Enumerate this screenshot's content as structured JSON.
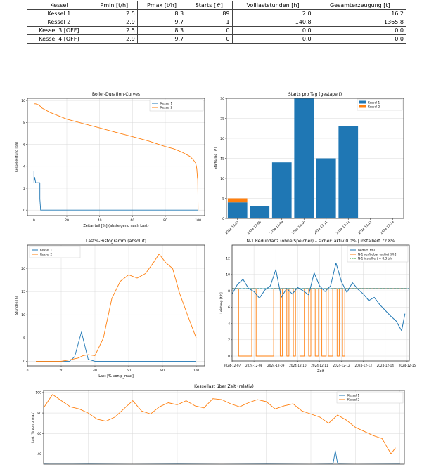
{
  "table": {
    "headers": [
      "Kessel",
      "Pmin [t/h]",
      "Pmax [t/h]",
      "Starts [#]",
      "Volllaststunden [h]",
      "Gesamterzeugung [t]"
    ],
    "rows": [
      [
        "Kessel 1",
        "2.5",
        "8.3",
        "89",
        "2.0",
        "16.2"
      ],
      [
        "Kessel 2",
        "2.9",
        "9.7",
        "1",
        "140.8",
        "1365.8"
      ],
      [
        "Kessel 3 [OFF]",
        "2.5",
        "8.3",
        "0",
        "0.0",
        "0.0"
      ],
      [
        "Kessel 4 [OFF]",
        "2.9",
        "9.7",
        "0",
        "0.0",
        "0.0"
      ]
    ]
  },
  "colors": {
    "blue": "#1f77b4",
    "orange": "#ff7f0e",
    "green": "#2ca02c",
    "grid": "#d9d9d9"
  },
  "chart_data": [
    {
      "id": "duration",
      "type": "line",
      "title": "Boiler-Duration-Curves",
      "xlabel": "Zeitanteil [%] (absteigend nach Last)",
      "ylabel": "Kesselleistung [t/h]",
      "xlim": [
        -4,
        104
      ],
      "ylim": [
        -0.5,
        10.2
      ],
      "xticks": [
        0,
        20,
        40,
        60,
        80,
        100
      ],
      "yticks": [
        0,
        2,
        4,
        6,
        8,
        10
      ],
      "legend": "top-right",
      "series": [
        {
          "name": "Kessel 1",
          "color": "blue",
          "x": [
            0,
            0,
            0.4,
            1,
            1,
            3.6,
            3.6,
            4,
            4,
            100
          ],
          "y": [
            3.6,
            2.5,
            3.0,
            2.5,
            2.5,
            2.5,
            1.0,
            0.1,
            0,
            0
          ]
        },
        {
          "name": "Kessel 2",
          "color": "orange",
          "x": [
            0,
            1,
            3,
            5,
            10,
            20,
            30,
            40,
            50,
            60,
            70,
            80,
            85,
            90,
            95,
            97,
            98.5,
            99.2,
            99.6,
            99.8,
            100
          ],
          "y": [
            9.7,
            9.7,
            9.6,
            9.3,
            8.9,
            8.3,
            7.9,
            7.5,
            7.1,
            6.7,
            6.3,
            5.8,
            5.6,
            5.3,
            4.9,
            4.6,
            4.3,
            3.8,
            3.0,
            2.8,
            0
          ]
        }
      ]
    },
    {
      "id": "starts",
      "type": "bar",
      "title": "Starts pro Tag (gestapelt)",
      "xlabel": "",
      "ylabel": "Starts/Tag [#]",
      "ylim": [
        0,
        30
      ],
      "yticks": [
        0,
        5,
        10,
        15,
        20,
        25,
        30
      ],
      "legend": "top-right",
      "categories": [
        "2024-12-07",
        "2024-12-08",
        "2024-12-09",
        "2024-12-10",
        "2024-12-11",
        "2024-12-12",
        "2024-12-13",
        "2024-12-14"
      ],
      "series": [
        {
          "name": "Kessel 1",
          "color": "blue",
          "values": [
            4,
            3,
            14,
            30,
            15,
            23,
            0,
            0
          ]
        },
        {
          "name": "Kessel 2",
          "color": "orange",
          "values": [
            1,
            0,
            0,
            0,
            0,
            0,
            0,
            0
          ]
        }
      ]
    },
    {
      "id": "histogram",
      "type": "line",
      "title": "Last%-Histogramm (absolut)",
      "xlabel": "Last [% von p_max]",
      "ylabel": "Stunden [h]",
      "xlim": [
        0,
        105
      ],
      "ylim": [
        -1,
        25
      ],
      "xticks": [
        0,
        20,
        40,
        60,
        80,
        100
      ],
      "yticks": [
        0,
        5,
        10,
        15,
        20
      ],
      "legend": "top-left",
      "series": [
        {
          "name": "Kessel 1",
          "color": "blue",
          "x": [
            5,
            10,
            15,
            20,
            25,
            28,
            32,
            36,
            40,
            45,
            50,
            55,
            60,
            65,
            70,
            75,
            80,
            85,
            90,
            95,
            100
          ],
          "y": [
            0,
            0,
            0,
            0,
            0,
            1.0,
            6.3,
            0.4,
            0,
            0,
            0,
            0,
            0,
            0,
            0,
            0,
            0,
            0,
            0,
            0,
            0
          ]
        },
        {
          "name": "Kessel 2",
          "color": "orange",
          "x": [
            5,
            10,
            15,
            20,
            25,
            30,
            33,
            36,
            40,
            45,
            50,
            55,
            60,
            65,
            70,
            75,
            78,
            82,
            86,
            90,
            95,
            100
          ],
          "y": [
            0,
            0,
            0,
            0,
            0.3,
            0.7,
            1.2,
            1.4,
            1.2,
            5.0,
            13.5,
            17.2,
            18.6,
            17.9,
            18.9,
            21.4,
            23.1,
            21.2,
            20.0,
            14.8,
            9.8,
            5.0
          ]
        }
      ]
    },
    {
      "id": "redundancy",
      "type": "line",
      "title": "N-1 Redundanz (ohne Speicher) – sicher: aktiv 0.0% | installiert 72.8%",
      "xlabel": "Zeit",
      "ylabel": "Leistung [t/h]",
      "ylim": [
        -0.6,
        13.6
      ],
      "yticks": [
        0,
        2,
        4,
        6,
        8,
        10,
        12
      ],
      "xdomain": [
        0,
        8.1
      ],
      "xtick_labels": [
        "2024-12-07",
        "2024-12-08",
        "2024-12-09",
        "2024-12-10",
        "2024-12-11",
        "2024-12-12",
        "2024-12-13",
        "2024-12-14",
        "2024-12-15"
      ],
      "xtick_values": [
        0,
        1,
        2,
        3,
        4,
        5,
        6,
        7,
        8
      ],
      "legend": "top-right",
      "installed_value": 8.3,
      "series": [
        {
          "name": "Bedarf [t/h]",
          "color": "blue",
          "x": [
            0,
            0.25,
            0.5,
            0.75,
            1,
            1.25,
            1.5,
            1.75,
            2,
            2.25,
            2.5,
            2.75,
            3,
            3.25,
            3.5,
            3.75,
            4,
            4.25,
            4.5,
            4.75,
            5,
            5.25,
            5.5,
            5.75,
            6,
            6.25,
            6.5,
            6.75,
            7,
            7.25,
            7.5,
            7.75,
            7.9
          ],
          "y": [
            7.6,
            8.8,
            9.4,
            8.3,
            7.9,
            7.1,
            8.1,
            8.6,
            10.6,
            7.2,
            8.3,
            7.6,
            8.4,
            8.0,
            7.5,
            10.2,
            8.6,
            7.9,
            8.6,
            11.4,
            9.1,
            7.8,
            9.0,
            8.2,
            7.6,
            6.8,
            7.2,
            6.3,
            5.6,
            4.9,
            4.3,
            3.1,
            5.2
          ]
        },
        {
          "name": "N-1 verfügbar (aktiv) [t/h]",
          "color": "orange",
          "x": [
            0,
            0.3,
            0.3,
            0.9,
            0.9,
            1.1,
            1.1,
            1.9,
            1.9,
            2.2,
            2.2,
            2.3,
            2.3,
            2.5,
            2.5,
            2.6,
            2.6,
            2.8,
            2.8,
            2.9,
            2.9,
            3.1,
            3.1,
            3.3,
            3.3,
            3.5,
            3.5,
            3.6,
            3.6,
            3.8,
            3.8,
            3.95,
            3.95,
            4.1,
            4.1,
            4.3,
            4.3,
            4.4,
            4.4,
            4.6,
            4.6,
            4.8,
            4.8,
            4.9,
            4.9,
            5.05,
            5.05,
            5.15,
            5.15,
            8.0
          ],
          "y": [
            8.3,
            8.3,
            0,
            0,
            8.3,
            8.3,
            0,
            0,
            8.3,
            8.3,
            0,
            0,
            8.3,
            8.3,
            0,
            0,
            8.3,
            8.3,
            0,
            0,
            8.3,
            8.3,
            0,
            0,
            8.3,
            8.3,
            0,
            0,
            8.3,
            8.3,
            0,
            0,
            8.3,
            8.3,
            0,
            0,
            8.3,
            8.3,
            0,
            0,
            8.3,
            8.3,
            0,
            0,
            8.3,
            8.3,
            0,
            0,
            8.3,
            8.3
          ]
        },
        {
          "name": "N-1 installiert = 8.3 t/h",
          "color": "green",
          "dashed": true,
          "x": [
            0,
            8.1
          ],
          "y": [
            8.3,
            8.3
          ]
        }
      ]
    },
    {
      "id": "load",
      "type": "line",
      "title": "Kessellast über Zeit (relativ)",
      "xlabel": "",
      "ylabel": "Last [% von p_max]",
      "ylim": [
        30,
        102
      ],
      "yticks": [
        40,
        60,
        80,
        100
      ],
      "xdomain": [
        0,
        8.1
      ],
      "legend": "top-right",
      "series": [
        {
          "name": "Kessel 1",
          "color": "blue",
          "x": [
            0,
            0.3,
            1.0,
            2.0,
            3.0,
            4.0,
            5.0,
            6.0,
            6.5,
            6.55,
            6.6,
            7.0,
            8.0
          ],
          "y": [
            30.8,
            31,
            30.8,
            31,
            30.8,
            31,
            30.8,
            31,
            30.8,
            43,
            30.8,
            31,
            30.8
          ]
        },
        {
          "name": "Kessel 2",
          "color": "orange",
          "x": [
            0,
            0.2,
            0.4,
            0.6,
            0.8,
            1.0,
            1.2,
            1.4,
            1.6,
            1.8,
            2.0,
            2.2,
            2.4,
            2.6,
            2.8,
            3.0,
            3.2,
            3.4,
            3.6,
            3.8,
            4.0,
            4.2,
            4.4,
            4.6,
            4.8,
            5.0,
            5.2,
            5.4,
            5.6,
            5.8,
            6.0,
            6.2,
            6.4,
            6.6,
            6.8,
            7.0,
            7.2,
            7.4,
            7.6,
            7.8,
            7.9
          ],
          "y": [
            85,
            98,
            92,
            86,
            84,
            80,
            74,
            72,
            76,
            84,
            92,
            82,
            79,
            86,
            90,
            88,
            92,
            87,
            85,
            94,
            93,
            89,
            86,
            90,
            93,
            91,
            84,
            87,
            89,
            82,
            79,
            76,
            70,
            78,
            73,
            66,
            62,
            58,
            55,
            40,
            46
          ]
        }
      ]
    }
  ]
}
